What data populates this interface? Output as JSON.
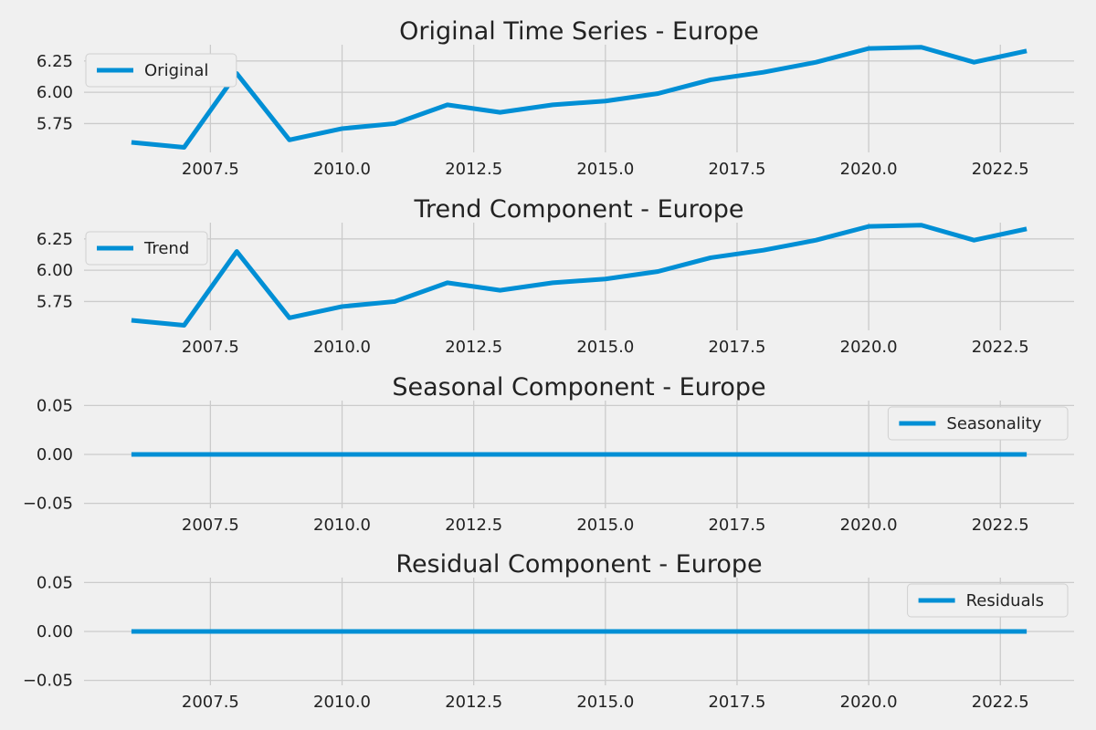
{
  "figure": {
    "background": "#f0f0f0",
    "line_color": "#008fd5",
    "grid_color": "#cbcbcb"
  },
  "chart_data": [
    {
      "type": "line",
      "title": "Original Time Series - Europe",
      "xlabel": "",
      "ylabel": "",
      "xlim": [
        2005.1,
        2023.9
      ],
      "ylim": [
        5.52,
        6.38
      ],
      "xticks": [
        2007.5,
        2010.0,
        2012.5,
        2015.0,
        2017.5,
        2020.0,
        2022.5
      ],
      "xtick_labels": [
        "2007.5",
        "2010.0",
        "2012.5",
        "2015.0",
        "2017.5",
        "2020.0",
        "2022.5"
      ],
      "yticks": [
        5.75,
        6.0,
        6.25
      ],
      "ytick_labels": [
        "5.75",
        "6.00",
        "6.25"
      ],
      "grid": true,
      "legend_position": "upper-left",
      "series": [
        {
          "name": "Original",
          "x": [
            2006,
            2007,
            2008,
            2009,
            2010,
            2011,
            2012,
            2013,
            2014,
            2015,
            2016,
            2017,
            2018,
            2019,
            2020,
            2021,
            2022,
            2023
          ],
          "y": [
            5.6,
            5.56,
            6.15,
            5.62,
            5.71,
            5.75,
            5.9,
            5.84,
            5.9,
            5.93,
            5.99,
            6.1,
            6.16,
            6.24,
            6.35,
            6.36,
            6.24,
            6.33
          ]
        }
      ]
    },
    {
      "type": "line",
      "title": "Trend Component - Europe",
      "xlabel": "",
      "ylabel": "",
      "xlim": [
        2005.1,
        2023.9
      ],
      "ylim": [
        5.52,
        6.38
      ],
      "xticks": [
        2007.5,
        2010.0,
        2012.5,
        2015.0,
        2017.5,
        2020.0,
        2022.5
      ],
      "xtick_labels": [
        "2007.5",
        "2010.0",
        "2012.5",
        "2015.0",
        "2017.5",
        "2020.0",
        "2022.5"
      ],
      "yticks": [
        5.75,
        6.0,
        6.25
      ],
      "ytick_labels": [
        "5.75",
        "6.00",
        "6.25"
      ],
      "grid": true,
      "legend_position": "upper-left",
      "series": [
        {
          "name": "Trend",
          "x": [
            2006,
            2007,
            2008,
            2009,
            2010,
            2011,
            2012,
            2013,
            2014,
            2015,
            2016,
            2017,
            2018,
            2019,
            2020,
            2021,
            2022,
            2023
          ],
          "y": [
            5.6,
            5.56,
            6.15,
            5.62,
            5.71,
            5.75,
            5.9,
            5.84,
            5.9,
            5.93,
            5.99,
            6.1,
            6.16,
            6.24,
            6.35,
            6.36,
            6.24,
            6.33
          ]
        }
      ]
    },
    {
      "type": "line",
      "title": "Seasonal Component - Europe",
      "xlabel": "",
      "ylabel": "",
      "xlim": [
        2005.1,
        2023.9
      ],
      "ylim": [
        -0.055,
        0.055
      ],
      "xticks": [
        2007.5,
        2010.0,
        2012.5,
        2015.0,
        2017.5,
        2020.0,
        2022.5
      ],
      "xtick_labels": [
        "2007.5",
        "2010.0",
        "2012.5",
        "2015.0",
        "2017.5",
        "2020.0",
        "2022.5"
      ],
      "yticks": [
        -0.05,
        0.0,
        0.05
      ],
      "ytick_labels": [
        "−0.05",
        "0.00",
        "0.05"
      ],
      "grid": true,
      "legend_position": "upper-right",
      "series": [
        {
          "name": "Seasonality",
          "x": [
            2006,
            2007,
            2008,
            2009,
            2010,
            2011,
            2012,
            2013,
            2014,
            2015,
            2016,
            2017,
            2018,
            2019,
            2020,
            2021,
            2022,
            2023
          ],
          "y": [
            0,
            0,
            0,
            0,
            0,
            0,
            0,
            0,
            0,
            0,
            0,
            0,
            0,
            0,
            0,
            0,
            0,
            0
          ]
        }
      ]
    },
    {
      "type": "line",
      "title": "Residual Component - Europe",
      "xlabel": "",
      "ylabel": "",
      "xlim": [
        2005.1,
        2023.9
      ],
      "ylim": [
        -0.055,
        0.055
      ],
      "xticks": [
        2007.5,
        2010.0,
        2012.5,
        2015.0,
        2017.5,
        2020.0,
        2022.5
      ],
      "xtick_labels": [
        "2007.5",
        "2010.0",
        "2012.5",
        "2015.0",
        "2017.5",
        "2020.0",
        "2022.5"
      ],
      "yticks": [
        -0.05,
        0.0,
        0.05
      ],
      "ytick_labels": [
        "−0.05",
        "0.00",
        "0.05"
      ],
      "grid": true,
      "legend_position": "upper-right",
      "series": [
        {
          "name": "Residuals",
          "x": [
            2006,
            2007,
            2008,
            2009,
            2010,
            2011,
            2012,
            2013,
            2014,
            2015,
            2016,
            2017,
            2018,
            2019,
            2020,
            2021,
            2022,
            2023
          ],
          "y": [
            0,
            0,
            0,
            0,
            0,
            0,
            0,
            0,
            0,
            0,
            0,
            0,
            0,
            0,
            0,
            0,
            0,
            0
          ]
        }
      ]
    }
  ]
}
